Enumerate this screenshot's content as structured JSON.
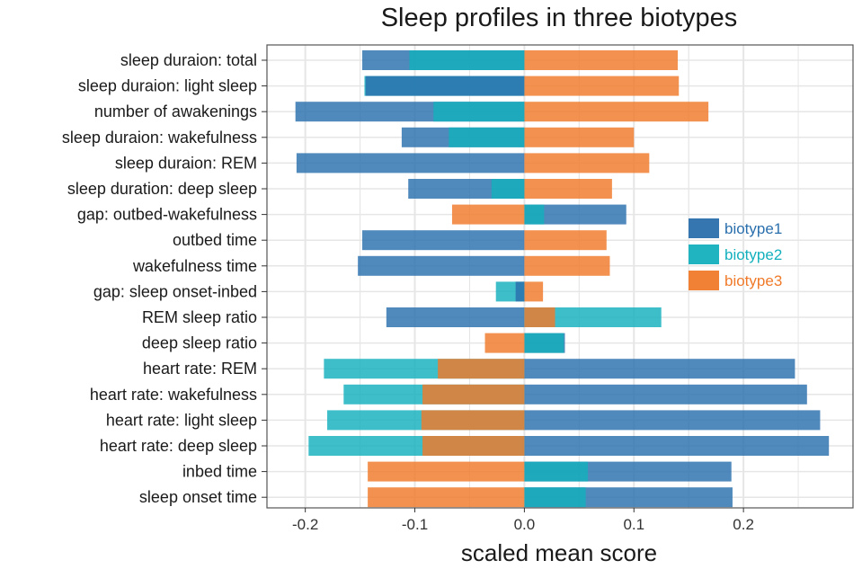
{
  "colors": {
    "biotype1": "#2a6fad",
    "biotype2": "#14b0bd",
    "biotype3": "#f07a2a",
    "grid": "#e6e6e6",
    "panel_border": "#555555"
  },
  "chart_data": {
    "type": "bar",
    "orientation": "horizontal",
    "title": "Sleep profiles in three biotypes",
    "xlabel": "scaled mean score",
    "ylabel": "",
    "xlim": [
      -0.235,
      0.3
    ],
    "xticks": [
      -0.2,
      -0.1,
      0.0,
      0.1,
      0.2
    ],
    "xtick_labels": [
      "-0.2",
      "-0.1",
      "0.0",
      "0.1",
      "0.2"
    ],
    "grid": true,
    "legend_position": "right",
    "categories": [
      "sleep duraion: total",
      "sleep duraion: light sleep",
      "number of awakenings",
      "sleep duraion: wakefulness",
      "sleep duraion: REM",
      "sleep duration: deep sleep",
      "gap: outbed-wakefulness",
      "outbed time",
      "wakefulness time",
      "gap: sleep onset-inbed",
      "REM sleep ratio",
      "deep sleep ratio",
      "heart rate: REM",
      "heart rate: wakefulness",
      "heart rate: light sleep",
      "heart rate: deep sleep",
      "inbed time",
      "sleep onset time"
    ],
    "series": [
      {
        "name": "biotype1",
        "values": [
          -0.148,
          -0.145,
          -0.209,
          -0.112,
          -0.208,
          -0.106,
          0.093,
          -0.148,
          -0.152,
          -0.008,
          -0.126,
          0.037,
          0.247,
          0.258,
          0.27,
          0.278,
          0.189,
          0.19
        ]
      },
      {
        "name": "biotype2",
        "values": [
          -0.105,
          -0.146,
          -0.083,
          -0.069,
          0.0,
          -0.03,
          0.018,
          0.0,
          0.0,
          -0.026,
          0.125,
          0.036,
          -0.183,
          -0.165,
          -0.18,
          -0.197,
          0.058,
          0.056
        ]
      },
      {
        "name": "biotype3",
        "values": [
          0.14,
          0.141,
          0.168,
          0.1,
          0.114,
          0.08,
          -0.066,
          0.075,
          0.078,
          0.017,
          0.028,
          -0.036,
          -0.079,
          -0.093,
          -0.094,
          -0.093,
          -0.143,
          -0.143
        ]
      }
    ]
  }
}
